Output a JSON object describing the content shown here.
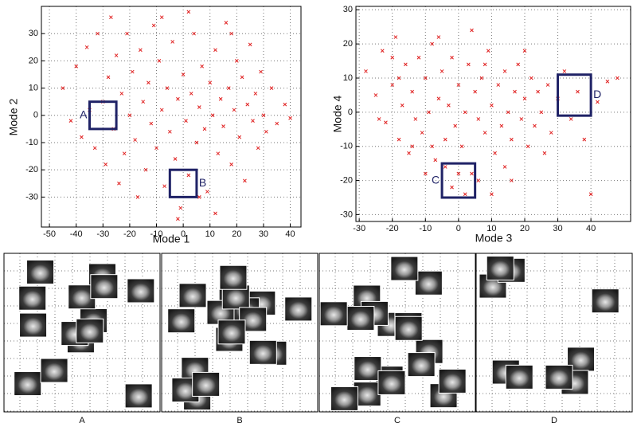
{
  "chart_data": [
    {
      "type": "scatter",
      "xlabel": "Mode 1",
      "ylabel": "Mode 2",
      "color": "#e02020",
      "xlim": [
        -53,
        44
      ],
      "ylim": [
        -41,
        40
      ],
      "xticks": [
        -50,
        -40,
        -30,
        -20,
        -10,
        0,
        10,
        20,
        30,
        40
      ],
      "yticks": [
        -30,
        -20,
        -10,
        0,
        10,
        20,
        30
      ],
      "grid": true,
      "x": [
        -45,
        -42,
        -40,
        -38,
        -36,
        -35,
        -33,
        -32,
        -30,
        -29,
        -28,
        -27,
        -26,
        -25,
        -24,
        -23,
        -22,
        -21,
        -20,
        -19,
        -18,
        -17,
        -16,
        -15,
        -14,
        -13,
        -12,
        -11,
        -10,
        -9,
        -8,
        -7,
        -6,
        -5,
        -4,
        -3,
        -2,
        -1,
        0,
        1,
        2,
        3,
        4,
        5,
        6,
        7,
        8,
        9,
        10,
        11,
        12,
        13,
        14,
        15,
        16,
        17,
        18,
        19,
        20,
        21,
        22,
        23,
        24,
        25,
        26,
        27,
        28,
        29,
        30,
        31,
        33,
        35,
        38,
        40,
        2,
        -8,
        12,
        -2,
        6,
        18
      ],
      "values": [
        10,
        -2,
        18,
        -8,
        25,
        2,
        -12,
        30,
        5,
        -18,
        14,
        36,
        -5,
        22,
        -25,
        8,
        -14,
        30,
        0,
        16,
        -9,
        -30,
        24,
        5,
        -20,
        12,
        -3,
        33,
        -12,
        20,
        2,
        -26,
        10,
        -6,
        27,
        -16,
        6,
        -34,
        15,
        -2,
        -22,
        8,
        30,
        -10,
        3,
        18,
        -5,
        -28,
        12,
        0,
        24,
        -14,
        6,
        -4,
        34,
        10,
        -18,
        2,
        20,
        -8,
        14,
        -24,
        4,
        26,
        -2,
        8,
        -12,
        16,
        0,
        -6,
        10,
        -3,
        4,
        -1,
        38,
        36,
        -36,
        -38,
        -30,
        30
      ],
      "regions": [
        {
          "label": "A",
          "x": [
            -35,
            -25
          ],
          "y": [
            -5,
            5
          ],
          "label_side": "left"
        },
        {
          "label": "B",
          "x": [
            -5,
            5
          ],
          "y": [
            -30,
            -20
          ],
          "label_side": "right"
        }
      ]
    },
    {
      "type": "scatter",
      "xlabel": "Mode 3",
      "ylabel": "Mode 4",
      "color": "#e02020",
      "xlim": [
        -31,
        52
      ],
      "ylim": [
        -32,
        31
      ],
      "xticks": [
        -30,
        -20,
        -10,
        0,
        10,
        20,
        30,
        40
      ],
      "yticks": [
        -30,
        -20,
        -10,
        0,
        10,
        20,
        30
      ],
      "grid": true,
      "x": [
        -28,
        -25,
        -23,
        -22,
        -20,
        -19,
        -18,
        -17,
        -16,
        -15,
        -14,
        -13,
        -12,
        -11,
        -10,
        -9,
        -8,
        -7,
        -6,
        -5,
        -4,
        -3,
        -2,
        -1,
        0,
        1,
        2,
        3,
        4,
        5,
        6,
        7,
        8,
        9,
        10,
        11,
        12,
        13,
        14,
        15,
        16,
        17,
        18,
        19,
        20,
        21,
        22,
        23,
        24,
        25,
        27,
        28,
        30,
        32,
        34,
        36,
        38,
        42,
        45,
        48,
        -2,
        0,
        2,
        -4,
        6,
        10,
        -6,
        4,
        -10,
        14,
        -24,
        -20,
        20,
        26,
        -8,
        8,
        -14,
        16,
        40,
        -18
      ],
      "values": [
        12,
        5,
        18,
        -3,
        8,
        22,
        -8,
        2,
        14,
        -12,
        6,
        -2,
        16,
        -6,
        10,
        0,
        20,
        -14,
        4,
        12,
        -8,
        2,
        16,
        -4,
        8,
        -10,
        0,
        14,
        -18,
        6,
        -2,
        10,
        -6,
        18,
        2,
        -12,
        8,
        -4,
        12,
        0,
        -8,
        6,
        14,
        -2,
        4,
        -10,
        10,
        -4,
        6,
        0,
        8,
        -6,
        4,
        12,
        -2,
        6,
        -8,
        3,
        9,
        10,
        -22,
        -18,
        -24,
        -16,
        -20,
        -24,
        22,
        24,
        -18,
        -16,
        -2,
        16,
        18,
        -12,
        -10,
        14,
        -10,
        -20,
        -24,
        10
      ],
      "regions": [
        {
          "label": "C",
          "x": [
            -5,
            5
          ],
          "y": [
            -25,
            -15
          ],
          "label_side": "left"
        },
        {
          "label": "D",
          "x": [
            30,
            40
          ],
          "y": [
            -1,
            11
          ],
          "label_side": "right"
        }
      ]
    }
  ],
  "panels": {
    "labels": [
      "A",
      "B",
      "C",
      "D"
    ]
  }
}
